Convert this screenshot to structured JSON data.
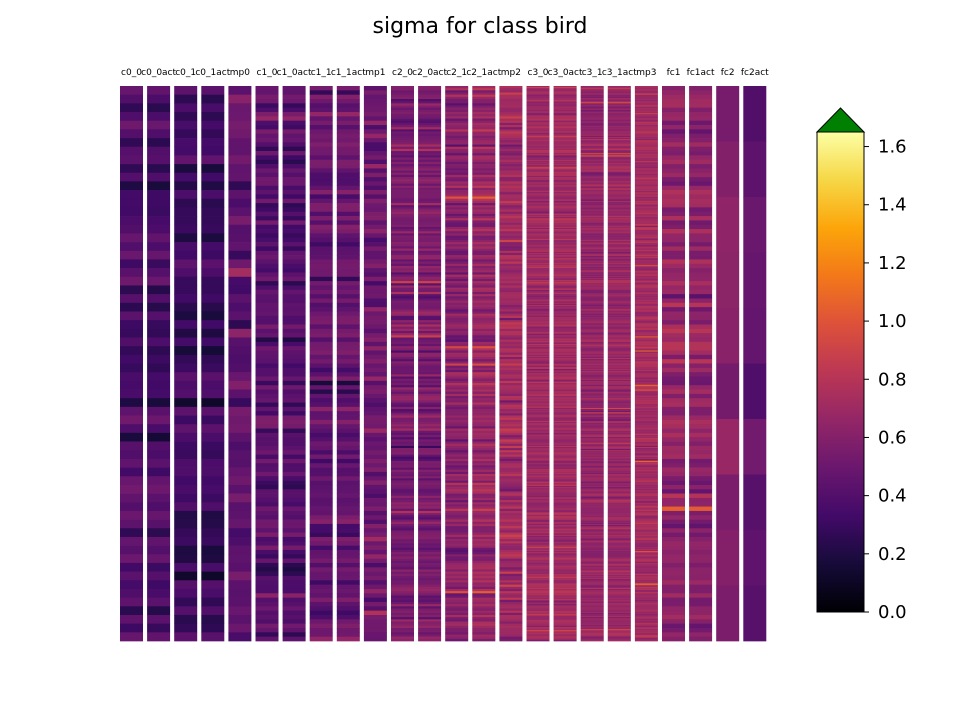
{
  "chart_data": {
    "type": "heatmap",
    "title": "sigma for class bird",
    "columns": [
      "c0_0",
      "c0_0act",
      "c0_1",
      "c0_1act",
      "mp0",
      "c1_0",
      "c1_0act",
      "c1_1",
      "c1_1act",
      "mp1",
      "c2_0",
      "c2_0act",
      "c2_1",
      "c2_1act",
      "mp2",
      "c3_0",
      "c3_0act",
      "c3_1",
      "c3_1act",
      "mp3",
      "fc1",
      "fc1act",
      "fc2",
      "fc2act"
    ],
    "row_counts": [
      64,
      64,
      64,
      64,
      64,
      128,
      128,
      128,
      128,
      128,
      256,
      256,
      256,
      256,
      256,
      512,
      512,
      512,
      512,
      512,
      128,
      128,
      10,
      10
    ],
    "column_mean_sigma": [
      0.38,
      0.36,
      0.32,
      0.31,
      0.45,
      0.42,
      0.4,
      0.46,
      0.47,
      0.5,
      0.55,
      0.56,
      0.6,
      0.66,
      0.7,
      0.7,
      0.71,
      0.66,
      0.68,
      0.72,
      0.64,
      0.62,
      0.62,
      0.47
    ],
    "colorbar": {
      "colormap": "inferno",
      "range": [
        0.0,
        1.65
      ],
      "ticks": [
        "0.0",
        "0.2",
        "0.4",
        "0.6",
        "0.8",
        "1.0",
        "1.2",
        "1.4",
        "1.6"
      ],
      "tick_values": [
        0.0,
        0.2,
        0.4,
        0.6,
        0.8,
        1.0,
        1.2,
        1.4,
        1.6
      ],
      "extend": "max",
      "over_color": "#008000"
    }
  }
}
